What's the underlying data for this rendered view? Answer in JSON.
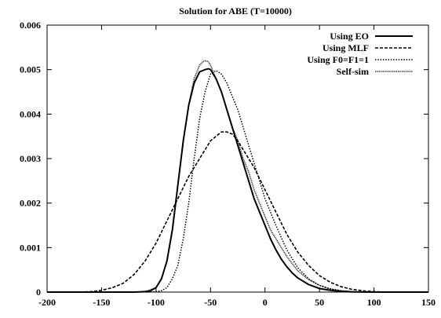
{
  "chart_data": {
    "type": "line",
    "title": "Solution for ABE (T=10000)",
    "xlabel": "",
    "ylabel": "",
    "xlim": [
      -200,
      150
    ],
    "ylim": [
      0,
      0.006
    ],
    "x_ticks": [
      -200,
      -150,
      -100,
      -50,
      0,
      50,
      100,
      150
    ],
    "x_tick_labels": [
      "-200",
      "-150",
      "-100",
      "-50",
      "0",
      "50",
      "100",
      "150"
    ],
    "y_ticks": [
      0,
      0.001,
      0.002,
      0.003,
      0.004,
      0.005,
      0.006
    ],
    "y_tick_labels": [
      "0",
      "0.001",
      "0.002",
      "0.003",
      "0.004",
      "0.005",
      "0.006"
    ],
    "grid": false,
    "legend_position": "top-right",
    "series": [
      {
        "name": "Using EO",
        "style": "solid",
        "stroke_width": 2,
        "x": [
          -200,
          -120,
          -110,
          -105,
          -100,
          -95,
          -90,
          -85,
          -80,
          -75,
          -70,
          -65,
          -60,
          -55,
          -52,
          -50,
          -45,
          -40,
          -35,
          -30,
          -25,
          -20,
          -15,
          -10,
          -5,
          0,
          5,
          10,
          15,
          20,
          25,
          30,
          40,
          50,
          60,
          70,
          80,
          90,
          100,
          150
        ],
        "y": [
          0,
          0,
          1e-05,
          3e-05,
          0.0001,
          0.0003,
          0.0007,
          0.0014,
          0.0024,
          0.0034,
          0.0042,
          0.0047,
          0.00495,
          0.005,
          0.00502,
          0.005,
          0.0048,
          0.0045,
          0.0041,
          0.0037,
          0.0033,
          0.0029,
          0.0025,
          0.0021,
          0.0018,
          0.0015,
          0.0012,
          0.00095,
          0.00074,
          0.00057,
          0.00043,
          0.00032,
          0.00017,
          8e-05,
          4e-05,
          1.5e-05,
          5e-06,
          2e-06,
          0,
          0
        ]
      },
      {
        "name": "Using MLF",
        "style": "dashed",
        "stroke_width": 1.6,
        "x": [
          -200,
          -170,
          -160,
          -150,
          -140,
          -130,
          -120,
          -110,
          -100,
          -90,
          -80,
          -70,
          -60,
          -50,
          -45,
          -40,
          -35,
          -30,
          -25,
          -20,
          -10,
          0,
          10,
          20,
          30,
          40,
          50,
          60,
          70,
          80,
          90,
          100,
          110,
          120,
          150
        ],
        "y": [
          0,
          0,
          1e-05,
          4e-05,
          0.0001,
          0.0002,
          0.0004,
          0.0007,
          0.0011,
          0.0016,
          0.0021,
          0.0026,
          0.003,
          0.0034,
          0.0035,
          0.0036,
          0.0036,
          0.00355,
          0.0034,
          0.0032,
          0.0028,
          0.0023,
          0.0018,
          0.0013,
          0.0009,
          0.0006,
          0.00037,
          0.00022,
          0.00012,
          6e-05,
          3e-05,
          1e-05,
          4e-06,
          0,
          0
        ]
      },
      {
        "name": "Using F0=F1=1",
        "style": "dotted",
        "stroke_width": 1.5,
        "x": [
          -200,
          -110,
          -100,
          -95,
          -90,
          -85,
          -80,
          -75,
          -70,
          -65,
          -60,
          -55,
          -50,
          -45,
          -40,
          -35,
          -30,
          -25,
          -20,
          -15,
          -10,
          -5,
          0,
          5,
          10,
          20,
          30,
          40,
          50,
          60,
          70,
          80,
          90,
          100,
          150
        ],
        "y": [
          0,
          0,
          1e-05,
          3e-05,
          0.0001,
          0.0003,
          0.0006,
          0.0012,
          0.002,
          0.003,
          0.0039,
          0.0045,
          0.0049,
          0.00498,
          0.0049,
          0.0047,
          0.0044,
          0.0041,
          0.0037,
          0.0033,
          0.0029,
          0.0025,
          0.0021,
          0.0018,
          0.0015,
          0.00095,
          0.00055,
          0.0003,
          0.00015,
          7e-05,
          3e-05,
          1e-05,
          4e-06,
          0,
          0
        ]
      },
      {
        "name": "Self-sim",
        "style": "dotted-fine",
        "stroke_width": 1.6,
        "x": [
          -200,
          -120,
          -110,
          -100,
          -95,
          -90,
          -85,
          -80,
          -75,
          -70,
          -65,
          -60,
          -57,
          -55,
          -52,
          -50,
          -45,
          -40,
          -35,
          -30,
          -25,
          -20,
          -15,
          -10,
          -5,
          0,
          5,
          10,
          20,
          30,
          40,
          50,
          60,
          70,
          80,
          90,
          100,
          150
        ],
        "y": [
          0,
          0,
          1e-05,
          0.0001,
          0.0003,
          0.0007,
          0.0014,
          0.0024,
          0.0034,
          0.0042,
          0.0048,
          0.0051,
          0.00518,
          0.0052,
          0.00518,
          0.0051,
          0.0048,
          0.0045,
          0.0041,
          0.0037,
          0.0034,
          0.003,
          0.0027,
          0.0023,
          0.002,
          0.0017,
          0.0014,
          0.0012,
          0.0008,
          0.00048,
          0.00028,
          0.00015,
          7e-05,
          3e-05,
          1e-05,
          4e-06,
          0,
          0
        ]
      }
    ]
  }
}
